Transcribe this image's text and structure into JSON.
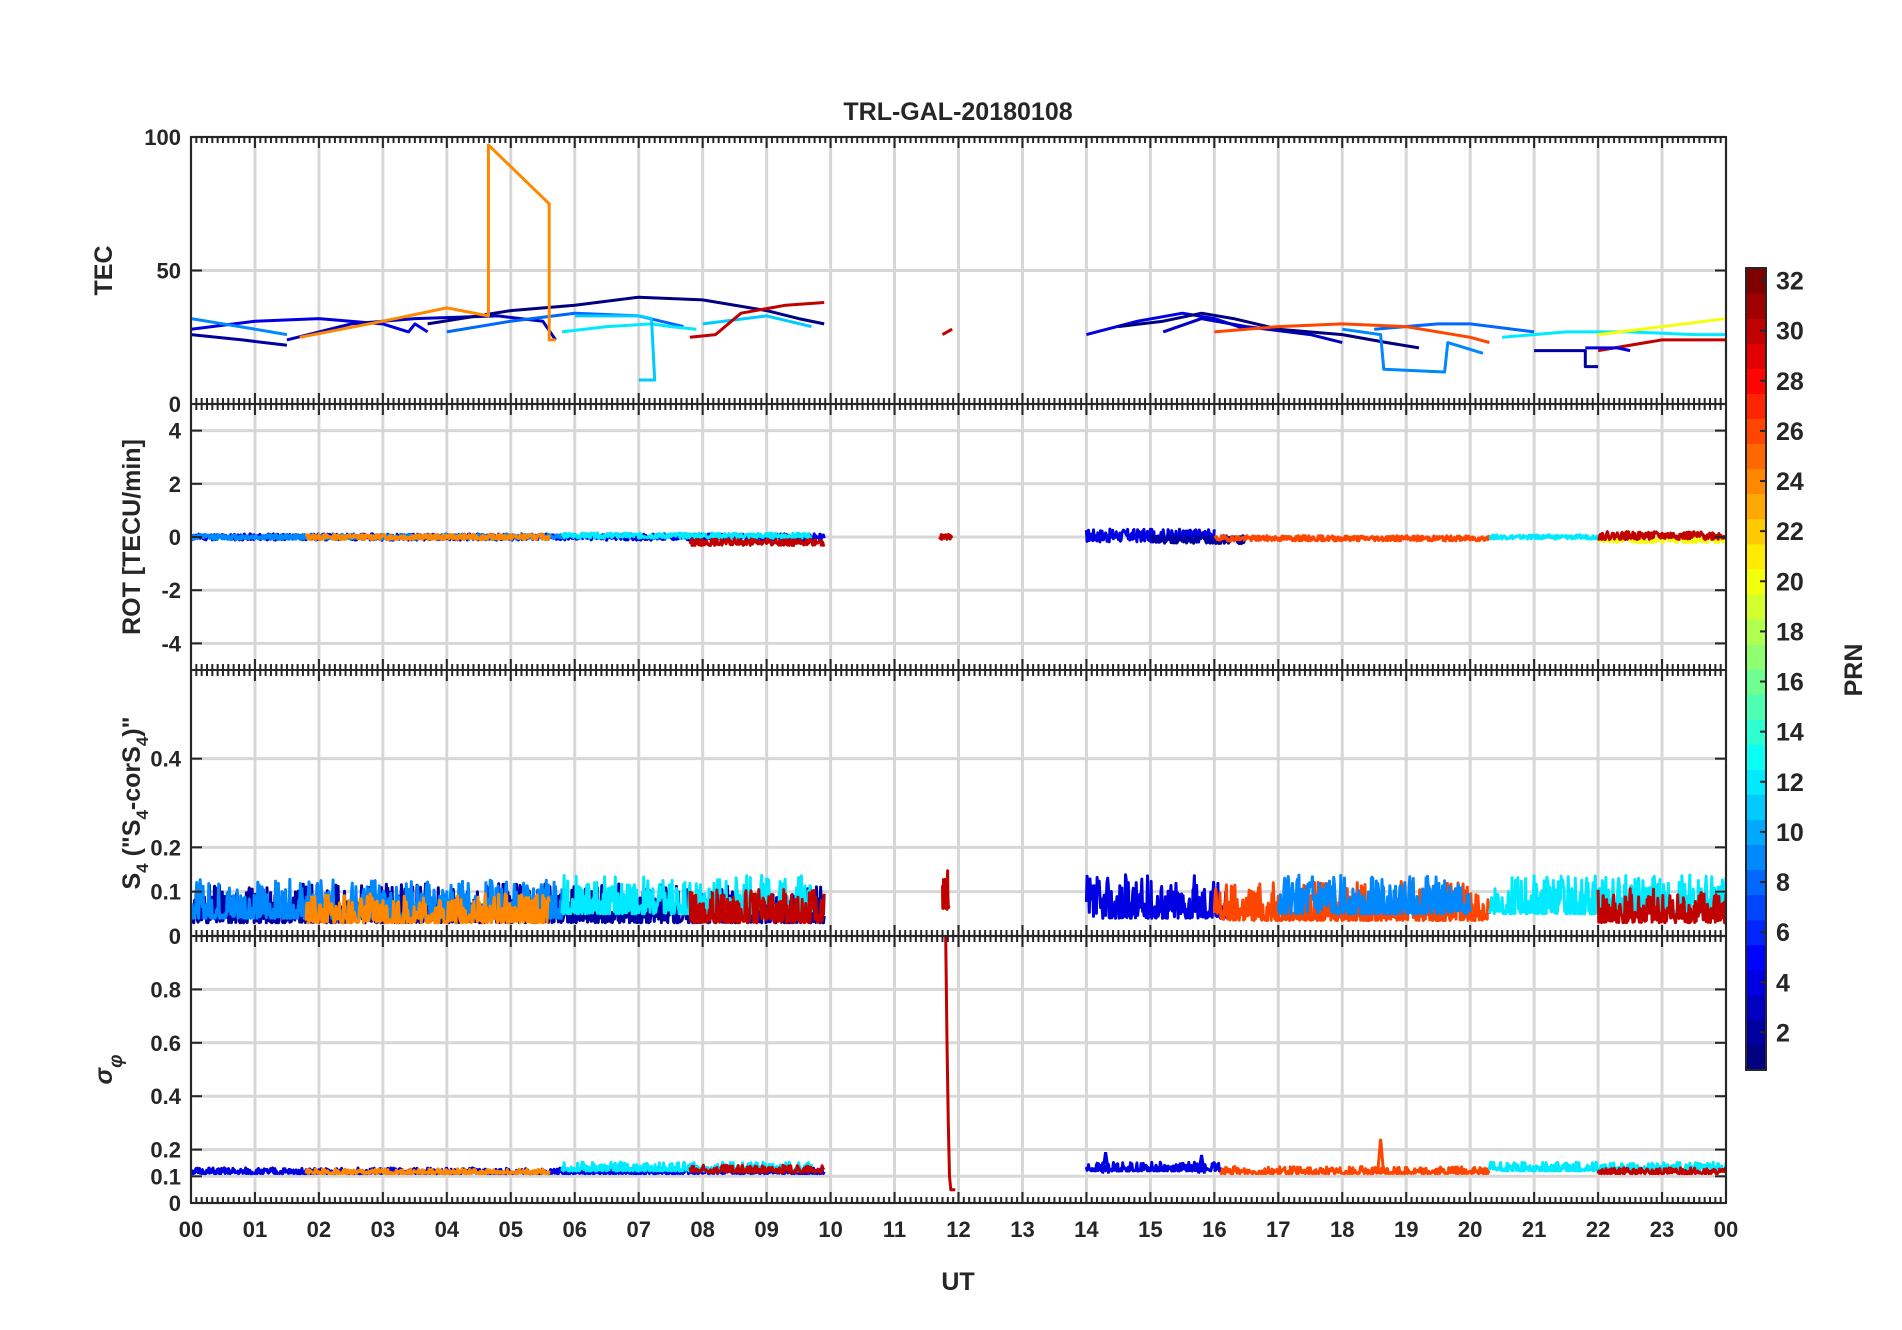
{
  "chart_data": {
    "type": "line",
    "title": "TRL-GAL-20180108",
    "xlabel": "UT",
    "x_unit": "hours UT",
    "x_ticks": [
      0,
      1,
      2,
      3,
      4,
      5,
      6,
      7,
      8,
      9,
      10,
      11,
      12,
      13,
      14,
      15,
      16,
      17,
      18,
      19,
      20,
      21,
      22,
      23,
      24
    ],
    "x_tick_labels": [
      "00",
      "01",
      "02",
      "03",
      "04",
      "05",
      "06",
      "07",
      "08",
      "09",
      "10",
      "11",
      "12",
      "13",
      "14",
      "15",
      "16",
      "17",
      "18",
      "19",
      "20",
      "21",
      "22",
      "23",
      "00"
    ],
    "grid": true,
    "colorbar": {
      "label": "PRN",
      "range": [
        1,
        32
      ],
      "tick_values": [
        2,
        4,
        6,
        8,
        10,
        12,
        14,
        16,
        18,
        20,
        22,
        24,
        26,
        28,
        30,
        32
      ],
      "tick_labels": [
        "2",
        "4",
        "6",
        "8",
        "10",
        "12",
        "14",
        "16",
        "18",
        "20",
        "22",
        "24",
        "26",
        "28",
        "30",
        "32"
      ],
      "colormap": "jet",
      "colors": [
        "#00008f",
        "#0000ff",
        "#0080ff",
        "#00ffff",
        "#80ff80",
        "#ffff00",
        "#ff8000",
        "#ff0000",
        "#800000"
      ]
    },
    "panels": [
      {
        "id": "tec",
        "ylabel": "TEC",
        "ylim": [
          0,
          100
        ],
        "y_ticks": [
          0,
          50,
          100
        ],
        "y_tick_labels": [
          "0",
          "50",
          "100"
        ],
        "series": [
          {
            "prn": 2,
            "points": [
              [
                0,
                26
              ],
              [
                0.8,
                24
              ],
              [
                1.5,
                22
              ]
            ]
          },
          {
            "prn": 4,
            "points": [
              [
                0,
                28
              ],
              [
                1,
                31
              ],
              [
                2,
                32
              ],
              [
                3,
                30
              ],
              [
                3.4,
                27
              ],
              [
                3.5,
                30
              ],
              [
                3.7,
                27
              ]
            ]
          },
          {
            "prn": 3,
            "points": [
              [
                1.5,
                24
              ],
              [
                2.5,
                30
              ],
              [
                3.5,
                32
              ],
              [
                4.8,
                33
              ],
              [
                5.5,
                31
              ],
              [
                5.7,
                24
              ]
            ]
          },
          {
            "prn": 1,
            "points": [
              [
                3.7,
                30
              ],
              [
                5,
                35
              ],
              [
                6,
                37
              ],
              [
                7,
                40
              ],
              [
                8,
                39
              ],
              [
                9,
                35
              ],
              [
                9.5,
                32
              ],
              [
                9.9,
                30
              ]
            ]
          },
          {
            "prn": 9,
            "points": [
              [
                0,
                32
              ],
              [
                1,
                28
              ],
              [
                1.5,
                26
              ]
            ]
          },
          {
            "prn": 8,
            "points": [
              [
                4,
                27
              ],
              [
                5,
                31
              ],
              [
                6,
                34
              ],
              [
                7,
                33
              ],
              [
                7.7,
                29
              ]
            ]
          },
          {
            "prn": 12,
            "points": [
              [
                5.8,
                27
              ],
              [
                6.5,
                29
              ],
              [
                7.2,
                30
              ],
              [
                7.5,
                29
              ],
              [
                7.9,
                28
              ]
            ]
          },
          {
            "prn": 11,
            "points": [
              [
                6,
                33
              ],
              [
                7,
                33
              ],
              [
                7.2,
                32
              ],
              [
                7.25,
                9
              ],
              [
                7.0,
                9
              ]
            ]
          },
          {
            "prn": 11,
            "points": [
              [
                8,
                30
              ],
              [
                9,
                33
              ],
              [
                9.7,
                29
              ]
            ]
          },
          {
            "prn": 24,
            "points": [
              [
                1.7,
                25
              ],
              [
                3,
                31
              ],
              [
                4,
                36
              ],
              [
                4.65,
                33
              ],
              [
                4.65,
                97
              ],
              [
                5.6,
                75
              ],
              [
                5.6,
                24
              ],
              [
                5.7,
                24
              ]
            ]
          },
          {
            "prn": 30,
            "points": [
              [
                7.8,
                25
              ],
              [
                8.2,
                26
              ],
              [
                8.6,
                34
              ],
              [
                9.3,
                37
              ],
              [
                9.9,
                38
              ]
            ]
          },
          {
            "prn": 30,
            "points": [
              [
                11.75,
                26
              ],
              [
                11.9,
                28
              ]
            ]
          },
          {
            "prn": 4,
            "points": [
              [
                14,
                26
              ],
              [
                14.8,
                31
              ],
              [
                15.5,
                34
              ],
              [
                16,
                32
              ],
              [
                16.5,
                28
              ]
            ]
          },
          {
            "prn": 3,
            "points": [
              [
                15.2,
                27
              ],
              [
                15.8,
                32
              ],
              [
                16.5,
                29
              ],
              [
                17.5,
                26
              ],
              [
                18,
                23
              ]
            ]
          },
          {
            "prn": 1,
            "points": [
              [
                14.5,
                29
              ],
              [
                15.2,
                31
              ],
              [
                15.8,
                34
              ],
              [
                16.3,
                32
              ],
              [
                17,
                28
              ],
              [
                18,
                26
              ],
              [
                18.7,
                23
              ],
              [
                19.2,
                21
              ]
            ]
          },
          {
            "prn": 9,
            "points": [
              [
                18,
                28
              ],
              [
                18.6,
                26
              ],
              [
                18.65,
                13
              ],
              [
                19.6,
                12
              ],
              [
                19.65,
                23
              ],
              [
                20.2,
                19
              ]
            ]
          },
          {
            "prn": 8,
            "points": [
              [
                18.5,
                28
              ],
              [
                19.5,
                30
              ],
              [
                20,
                30
              ],
              [
                21,
                27
              ]
            ]
          },
          {
            "prn": 26,
            "points": [
              [
                16,
                27
              ],
              [
                17,
                29
              ],
              [
                18,
                30
              ],
              [
                19,
                29
              ],
              [
                20,
                25
              ],
              [
                20.3,
                23
              ]
            ]
          },
          {
            "prn": 12,
            "points": [
              [
                20.5,
                25
              ],
              [
                21.5,
                27
              ],
              [
                22.5,
                27
              ],
              [
                23.5,
                26
              ],
              [
                24,
                26
              ]
            ]
          },
          {
            "prn": 2,
            "points": [
              [
                21,
                20
              ],
              [
                21.8,
                20
              ],
              [
                21.8,
                14
              ],
              [
                22,
                14
              ]
            ]
          },
          {
            "prn": 20,
            "points": [
              [
                22,
                26
              ],
              [
                23,
                29
              ],
              [
                24,
                32
              ]
            ]
          },
          {
            "prn": 30,
            "points": [
              [
                22,
                20
              ],
              [
                23,
                24
              ],
              [
                24,
                24
              ]
            ]
          },
          {
            "prn": 4,
            "points": [
              [
                21.8,
                21
              ],
              [
                22.3,
                21
              ],
              [
                22.5,
                20
              ]
            ]
          }
        ]
      },
      {
        "id": "rot",
        "ylabel": "ROT [TECU/min]",
        "ylim": [
          -5,
          5
        ],
        "y_ticks": [
          -4,
          -2,
          0,
          2,
          4
        ],
        "y_tick_labels": [
          "-4",
          "-2",
          "0",
          "2",
          "4"
        ],
        "series": [
          {
            "prn": 4,
            "band": [
              0,
              9.9,
              0.0,
              0.12,
              11
            ]
          },
          {
            "prn": 9,
            "band": [
              0,
              5.8,
              0.0,
              0.1,
              12
            ]
          },
          {
            "prn": 24,
            "band": [
              1.8,
              5.6,
              0.0,
              0.1,
              13
            ]
          },
          {
            "prn": 12,
            "band": [
              5.8,
              9.7,
              0.05,
              0.1,
              14
            ]
          },
          {
            "prn": 30,
            "band": [
              7.8,
              9.9,
              -0.2,
              0.12,
              15
            ]
          },
          {
            "prn": 30,
            "band": [
              11.7,
              11.9,
              0.0,
              0.1,
              16
            ]
          },
          {
            "prn": 4,
            "band": [
              14,
              16,
              0.05,
              0.25,
              17
            ]
          },
          {
            "prn": 2,
            "band": [
              15,
              16.5,
              -0.1,
              0.15,
              18
            ]
          },
          {
            "prn": 26,
            "band": [
              16,
              20.3,
              -0.05,
              0.1,
              19
            ]
          },
          {
            "prn": 12,
            "band": [
              20.3,
              22,
              0.0,
              0.08,
              20
            ]
          },
          {
            "prn": 20,
            "band": [
              22,
              24,
              -0.1,
              0.12,
              21
            ]
          },
          {
            "prn": 30,
            "band": [
              22,
              24,
              0.05,
              0.15,
              22
            ]
          }
        ]
      },
      {
        "id": "s4",
        "ylabel": "S4 (\"S4-corS4\")",
        "ylim": [
          0,
          0.6
        ],
        "y_ticks": [
          0,
          0.1,
          0.2,
          0.4
        ],
        "y_tick_labels": [
          "0",
          "0.1",
          "0.2",
          "0.4"
        ],
        "series": [
          {
            "prn": 2,
            "band": [
              0,
              9.9,
              0.03,
              0.04,
              31
            ]
          },
          {
            "prn": 9,
            "band": [
              0,
              5.8,
              0.04,
              0.04,
              32
            ]
          },
          {
            "prn": 24,
            "band": [
              1.8,
              5.6,
              0.03,
              0.03,
              33
            ]
          },
          {
            "prn": 12,
            "band": [
              5.8,
              9.7,
              0.05,
              0.04,
              34
            ]
          },
          {
            "prn": 30,
            "band": [
              7.8,
              9.9,
              0.03,
              0.035,
              35
            ]
          },
          {
            "prn": 30,
            "band": [
              11.75,
              11.85,
              0.06,
              0.04,
              36
            ]
          },
          {
            "prn": 4,
            "band": [
              14,
              16.2,
              0.04,
              0.045,
              37
            ]
          },
          {
            "prn": 26,
            "band": [
              16,
              20.3,
              0.035,
              0.04,
              38
            ]
          },
          {
            "prn": 9,
            "band": [
              17,
              20,
              0.05,
              0.04,
              39
            ]
          },
          {
            "prn": 12,
            "band": [
              20.3,
              24,
              0.05,
              0.04,
              40
            ]
          },
          {
            "prn": 30,
            "band": [
              22,
              24,
              0.03,
              0.035,
              41
            ]
          }
        ]
      },
      {
        "id": "sigma",
        "ylabel": "σφ",
        "ylim": [
          0,
          1
        ],
        "y_ticks": [
          0,
          0.1,
          0.2,
          0.4,
          0.6,
          0.8
        ],
        "y_tick_labels": [
          "0",
          "0.1",
          "0.2",
          "0.4",
          "0.6",
          "0.8"
        ],
        "series": [
          {
            "prn": 4,
            "band": [
              0,
              9.9,
              0.11,
              0.01,
              51
            ]
          },
          {
            "prn": 24,
            "band": [
              1.8,
              5.6,
              0.11,
              0.008,
              52
            ]
          },
          {
            "prn": 12,
            "band": [
              5.8,
              9.7,
              0.12,
              0.015,
              53
            ]
          },
          {
            "prn": 30,
            "band": [
              7.8,
              9.9,
              0.115,
              0.012,
              54
            ]
          },
          {
            "prn": 30,
            "points": [
              [
                11.8,
                1.0
              ],
              [
                11.82,
                0.6
              ],
              [
                11.84,
                0.3
              ],
              [
                11.86,
                0.1
              ],
              [
                11.88,
                0.05
              ],
              [
                11.95,
                0.05
              ]
            ]
          },
          {
            "prn": 4,
            "band": [
              14,
              16.1,
              0.12,
              0.015,
              55
            ]
          },
          {
            "prn": 26,
            "band": [
              16.1,
              20.3,
              0.11,
              0.012,
              56
            ]
          },
          {
            "prn": 12,
            "band": [
              20.3,
              24,
              0.12,
              0.015,
              57
            ]
          },
          {
            "prn": 30,
            "band": [
              22,
              24,
              0.11,
              0.01,
              58
            ]
          }
        ],
        "spikes": [
          {
            "prn": 4,
            "x": 14.3,
            "y": 0.19
          },
          {
            "prn": 4,
            "x": 15.8,
            "y": 0.18
          },
          {
            "prn": 26,
            "x": 18.6,
            "y": 0.24
          }
        ]
      }
    ]
  }
}
